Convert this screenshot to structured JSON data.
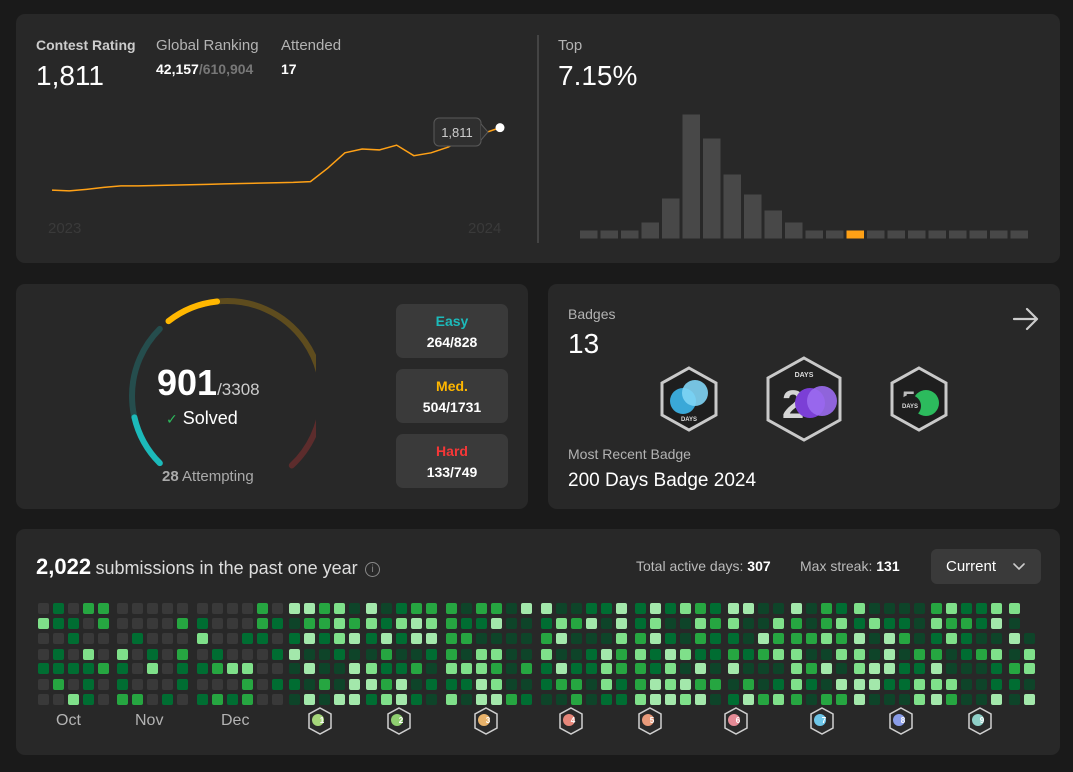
{
  "contest": {
    "rating_label": "Contest Rating",
    "rating_value": "1,811",
    "global_label": "Global Ranking",
    "global_rank": "42,157",
    "global_total": "/610,904",
    "attended_label": "Attended",
    "attended_value": "17",
    "tooltip": "1,811",
    "year_start": "2023",
    "year_end": "2024",
    "line_color": "#ffa116",
    "top_label": "Top",
    "top_value": "7.15%"
  },
  "chart_data": [
    {
      "type": "line",
      "title": "",
      "xlabel": "",
      "ylabel": "",
      "x_ticks": [
        "2023",
        "2024"
      ],
      "series": [
        {
          "values": [
            1486,
            1482,
            1490,
            1500,
            1508,
            1508,
            1510,
            1512,
            1514,
            1516,
            1518,
            1520,
            1522,
            1524,
            1526,
            1530,
            1600,
            1680,
            1700,
            1695,
            1720,
            1665,
            1680,
            1710,
            1760,
            1780,
            1811
          ]
        }
      ],
      "grid": false,
      "legend": "none"
    },
    {
      "type": "bar",
      "title": "",
      "xlabel": "",
      "ylabel": "",
      "values": [
        2,
        2,
        2,
        4,
        10,
        31,
        25,
        16,
        11,
        7,
        4,
        2,
        2,
        2,
        2,
        2,
        2,
        2,
        2,
        2,
        2,
        2
      ],
      "highlight_index": 13,
      "highlight_color": "#ffa116",
      "bar_color": "#484848",
      "grid": false,
      "legend": "none"
    }
  ],
  "problems": {
    "solved": "901",
    "total": "/3308",
    "solved_label": "Solved",
    "attempting_count": "28",
    "attempting_label": "Attempting",
    "solved_fraction": 0.272,
    "easy": {
      "label": "Easy",
      "value": "264/828",
      "color": "#1cbaba"
    },
    "medium": {
      "label": "Med.",
      "value": "504/1731",
      "color": "#ffb700"
    },
    "hard": {
      "label": "Hard",
      "value": "133/749",
      "color": "#f63737"
    }
  },
  "badges": {
    "label": "Badges",
    "count": "13",
    "recent_label": "Most Recent Badge",
    "recent_name": "200 Days Badge 2024",
    "days_text": "DAYS",
    "items": [
      {
        "name": "100 days badge",
        "icon": "badge-100-days-icon"
      },
      {
        "name": "200 days badge",
        "icon": "badge-200-days-icon"
      },
      {
        "name": "50 days badge",
        "icon": "badge-50-days-icon"
      }
    ]
  },
  "submissions": {
    "count": "2,022",
    "text": "submissions in the past one year",
    "active_label": "Total active days:",
    "active_value": "307",
    "streak_label": "Max streak:",
    "streak_value": "131",
    "dropdown_value": "Current",
    "months": [
      "Oct",
      "Nov",
      "Dec"
    ],
    "month_badges": [
      "1",
      "2",
      "3",
      "4",
      "5",
      "6",
      "7",
      "8",
      "9"
    ],
    "badge_colors": [
      "#a5d67a",
      "#8fcf70",
      "#e8b26a",
      "#e6877a",
      "#e89a7a",
      "#e58a95",
      "#6ec6e8",
      "#8a9de8",
      "#8fd0c8"
    ]
  }
}
